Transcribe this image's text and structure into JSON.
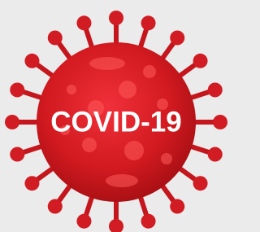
{
  "label": "COVID-19"
}
